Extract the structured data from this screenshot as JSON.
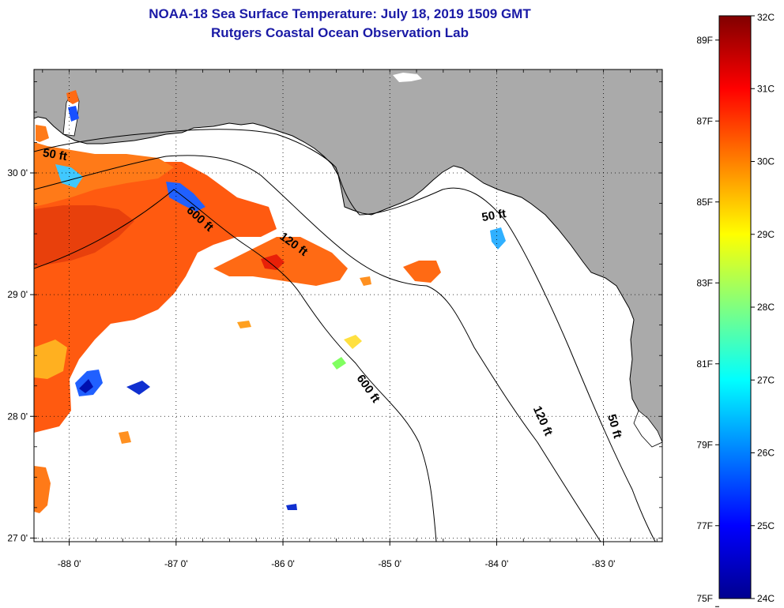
{
  "header": {
    "title": "NOAA-18 Sea Surface Temperature:  July 18, 2019 1509 GMT",
    "subtitle": "Rutgers Coastal Ocean Observation Lab"
  },
  "map": {
    "lon_range": [
      -88.33,
      -82.45
    ],
    "lat_range": [
      26.97,
      30.85
    ],
    "lon_ticks": [
      {
        "value": -88,
        "label": "-88 0'"
      },
      {
        "value": -87,
        "label": "-87 0'"
      },
      {
        "value": -86,
        "label": "-86 0'"
      },
      {
        "value": -85,
        "label": "-85 0'"
      },
      {
        "value": -84,
        "label": "-84 0'"
      },
      {
        "value": -83,
        "label": "-83 0'"
      }
    ],
    "lat_ticks": [
      {
        "value": 30,
        "label": "30 0'"
      },
      {
        "value": 29,
        "label": "29 0'"
      },
      {
        "value": 28,
        "label": "28 0'"
      },
      {
        "value": 27,
        "label": "27 0'"
      }
    ],
    "grid": "dotted",
    "land_color": "#aaaaaa",
    "ocean_color": "#ffffff",
    "contour_labels": [
      {
        "text": "50 ft",
        "lon": -88.14,
        "lat": 30.12,
        "rotate": 10
      },
      {
        "text": "600 ft",
        "lon": -86.8,
        "lat": 29.6,
        "rotate": 42
      },
      {
        "text": "120 ft",
        "lon": -85.92,
        "lat": 29.39,
        "rotate": 36
      },
      {
        "text": "50 ft",
        "lon": -84.02,
        "lat": 29.62,
        "rotate": -10
      },
      {
        "text": "600 ft",
        "lon": -85.23,
        "lat": 28.21,
        "rotate": 55
      },
      {
        "text": "120 ft",
        "lon": -83.6,
        "lat": 27.95,
        "rotate": 66
      },
      {
        "text": "50 ft",
        "lon": -82.93,
        "lat": 27.91,
        "rotate": 74
      }
    ]
  },
  "colorbar": {
    "min_c": 24,
    "max_c": 32,
    "colors": [
      "#00008f",
      "#0000ff",
      "#0080ff",
      "#00ffff",
      "#80ff80",
      "#ffff00",
      "#ff8000",
      "#ff0000",
      "#800000"
    ],
    "celsius_labels": [
      "32C",
      "31C",
      "30C",
      "29C",
      "28C",
      "27C",
      "26C",
      "25C",
      "24C"
    ],
    "fahrenheit_labels": [
      "89F",
      "87F",
      "85F",
      "83F",
      "81F",
      "79F",
      "77F",
      "75F"
    ],
    "fahrenheit_values": [
      89,
      87,
      85,
      83,
      81,
      79,
      77,
      75
    ]
  }
}
